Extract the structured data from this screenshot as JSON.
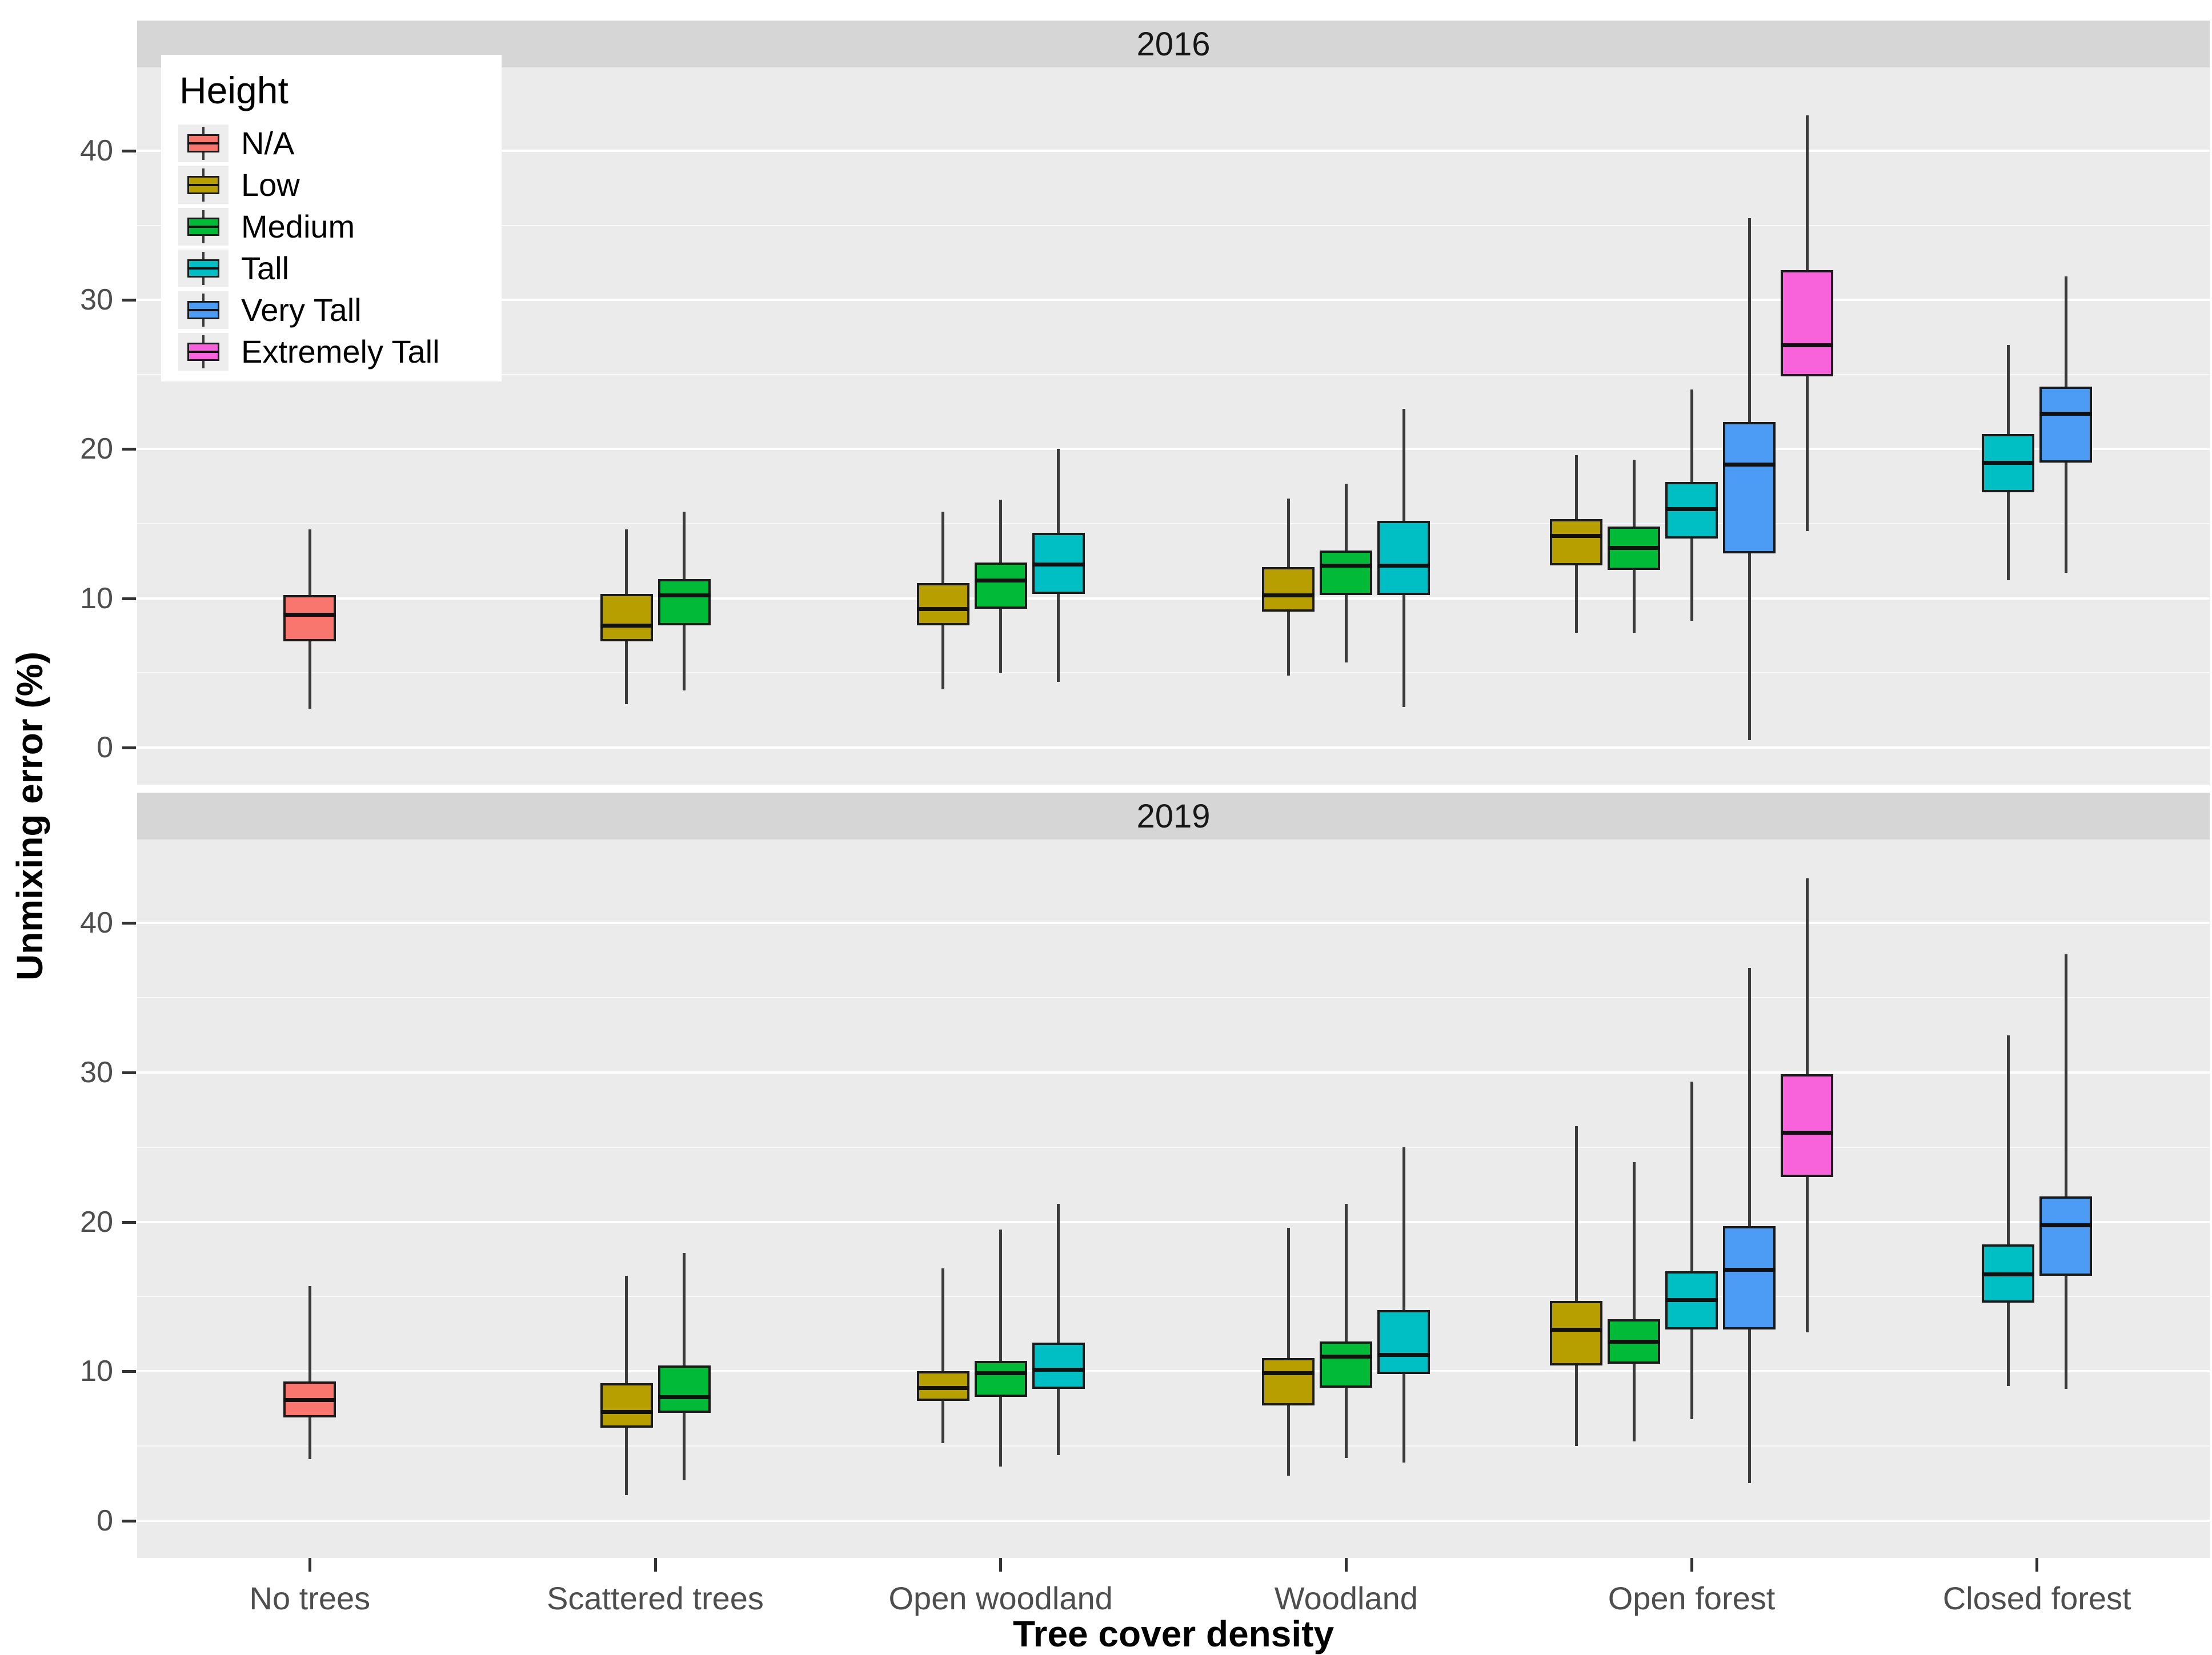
{
  "figure": {
    "facet_labels": [
      "2016",
      "2019"
    ]
  },
  "axes": {
    "y_label": "Unmixing error (%)",
    "x_label": "Tree cover density",
    "y_ticks": [
      0,
      10,
      20,
      30,
      40
    ],
    "x_categories": [
      "No trees",
      "Scattered trees",
      "Open woodland",
      "Woodland",
      "Open forest",
      "Closed forest"
    ]
  },
  "legend": {
    "title": "Height",
    "items": [
      {
        "label": "N/A",
        "color": "#F8766D"
      },
      {
        "label": "Low",
        "color": "#B79F00"
      },
      {
        "label": "Medium",
        "color": "#00BA38"
      },
      {
        "label": "Tall",
        "color": "#00BFC4"
      },
      {
        "label": "Very Tall",
        "color": "#4C9CF5"
      },
      {
        "label": "Extremely Tall",
        "color": "#F863DC"
      }
    ]
  },
  "colors": {
    "panel_bg": "#EBEBEB",
    "strip_bg": "#D6D6D6",
    "grid_major": "#FFFFFF",
    "box_outline": "#1B1B1B",
    "whisker": "#3A3A3A",
    "tick_text": "#4D4D4D"
  },
  "chart_data": {
    "type": "boxplot",
    "title": "",
    "xlabel": "Tree cover density",
    "ylabel": "Unmixing error (%)",
    "ylim": [
      -2.5,
      45.6
    ],
    "y_major": [
      0,
      10,
      20,
      30,
      40
    ],
    "y_minor": [
      5,
      15,
      25,
      35
    ],
    "grid": true,
    "legend_position": "inside-top-left",
    "stats_order": [
      "whisker_low",
      "q1",
      "median",
      "q3",
      "whisker_high"
    ],
    "facets": [
      {
        "label": "2016",
        "groups": [
          {
            "category": "No trees",
            "boxes": [
              {
                "height": "N/A",
                "stats": [
                  2.6,
                  7.1,
                  8.9,
                  10.2,
                  14.6
                ]
              }
            ]
          },
          {
            "category": "Scattered trees",
            "boxes": [
              {
                "height": "Low",
                "stats": [
                  2.9,
                  7.1,
                  8.2,
                  10.3,
                  14.6
                ]
              },
              {
                "height": "Medium",
                "stats": [
                  3.8,
                  8.2,
                  10.2,
                  11.3,
                  15.8
                ]
              }
            ]
          },
          {
            "category": "Open woodland",
            "boxes": [
              {
                "height": "Low",
                "stats": [
                  3.9,
                  8.2,
                  9.3,
                  11.0,
                  15.8
                ]
              },
              {
                "height": "Medium",
                "stats": [
                  5.0,
                  9.3,
                  11.2,
                  12.4,
                  16.6
                ]
              },
              {
                "height": "Tall",
                "stats": [
                  4.4,
                  10.3,
                  12.3,
                  14.4,
                  20.0
                ]
              }
            ]
          },
          {
            "category": "Woodland",
            "boxes": [
              {
                "height": "Low",
                "stats": [
                  4.8,
                  9.1,
                  10.2,
                  12.1,
                  16.7
                ]
              },
              {
                "height": "Medium",
                "stats": [
                  5.7,
                  10.2,
                  12.2,
                  13.2,
                  17.7
                ]
              },
              {
                "height": "Tall",
                "stats": [
                  2.7,
                  10.2,
                  12.2,
                  15.2,
                  22.7
                ]
              }
            ]
          },
          {
            "category": "Open forest",
            "boxes": [
              {
                "height": "Low",
                "stats": [
                  7.7,
                  12.2,
                  14.2,
                  15.3,
                  19.6
                ]
              },
              {
                "height": "Medium",
                "stats": [
                  7.7,
                  11.9,
                  13.4,
                  14.8,
                  19.3
                ]
              },
              {
                "height": "Tall",
                "stats": [
                  8.5,
                  14.0,
                  16.0,
                  17.8,
                  24.0
                ]
              },
              {
                "height": "Very Tall",
                "stats": [
                  0.5,
                  13.0,
                  19.0,
                  21.8,
                  35.5
                ]
              },
              {
                "height": "Extremely Tall",
                "stats": [
                  14.5,
                  24.9,
                  27.0,
                  32.0,
                  42.4
                ]
              }
            ]
          },
          {
            "category": "Closed forest",
            "boxes": [
              {
                "height": "Tall",
                "stats": [
                  11.2,
                  17.1,
                  19.1,
                  21.0,
                  27.0
                ]
              },
              {
                "height": "Very Tall",
                "stats": [
                  11.7,
                  19.1,
                  22.4,
                  24.2,
                  31.6
                ]
              }
            ]
          }
        ]
      },
      {
        "label": "2019",
        "groups": [
          {
            "category": "No trees",
            "boxes": [
              {
                "height": "N/A",
                "stats": [
                  4.1,
                  6.9,
                  8.1,
                  9.3,
                  15.7
                ]
              }
            ]
          },
          {
            "category": "Scattered trees",
            "boxes": [
              {
                "height": "Low",
                "stats": [
                  1.7,
                  6.2,
                  7.3,
                  9.2,
                  16.4
                ]
              },
              {
                "height": "Medium",
                "stats": [
                  2.7,
                  7.2,
                  8.3,
                  10.4,
                  17.9
                ]
              }
            ]
          },
          {
            "category": "Open woodland",
            "boxes": [
              {
                "height": "Low",
                "stats": [
                  5.2,
                  8.0,
                  8.9,
                  10.0,
                  16.9
                ]
              },
              {
                "height": "Medium",
                "stats": [
                  3.6,
                  8.3,
                  9.9,
                  10.7,
                  19.5
                ]
              },
              {
                "height": "Tall",
                "stats": [
                  4.4,
                  8.8,
                  10.1,
                  11.9,
                  21.2
                ]
              }
            ]
          },
          {
            "category": "Woodland",
            "boxes": [
              {
                "height": "Low",
                "stats": [
                  3.0,
                  7.7,
                  9.9,
                  10.9,
                  19.6
                ]
              },
              {
                "height": "Medium",
                "stats": [
                  4.2,
                  8.9,
                  11.0,
                  12.0,
                  21.2
                ]
              },
              {
                "height": "Tall",
                "stats": [
                  3.9,
                  9.8,
                  11.1,
                  14.1,
                  25.0
                ]
              }
            ]
          },
          {
            "category": "Open forest",
            "boxes": [
              {
                "height": "Low",
                "stats": [
                  5.0,
                  10.4,
                  12.8,
                  14.7,
                  26.4
                ]
              },
              {
                "height": "Medium",
                "stats": [
                  5.3,
                  10.5,
                  12.0,
                  13.5,
                  24.0
                ]
              },
              {
                "height": "Tall",
                "stats": [
                  6.8,
                  12.8,
                  14.8,
                  16.7,
                  29.4
                ]
              },
              {
                "height": "Very Tall",
                "stats": [
                  2.5,
                  12.8,
                  16.8,
                  19.7,
                  37.0
                ]
              },
              {
                "height": "Extremely Tall",
                "stats": [
                  12.6,
                  23.0,
                  26.0,
                  29.9,
                  43.0
                ]
              }
            ]
          },
          {
            "category": "Closed forest",
            "boxes": [
              {
                "height": "Tall",
                "stats": [
                  9.0,
                  14.6,
                  16.5,
                  18.5,
                  32.5
                ]
              },
              {
                "height": "Very Tall",
                "stats": [
                  8.8,
                  16.4,
                  19.8,
                  21.7,
                  37.9
                ]
              }
            ]
          }
        ]
      }
    ]
  }
}
